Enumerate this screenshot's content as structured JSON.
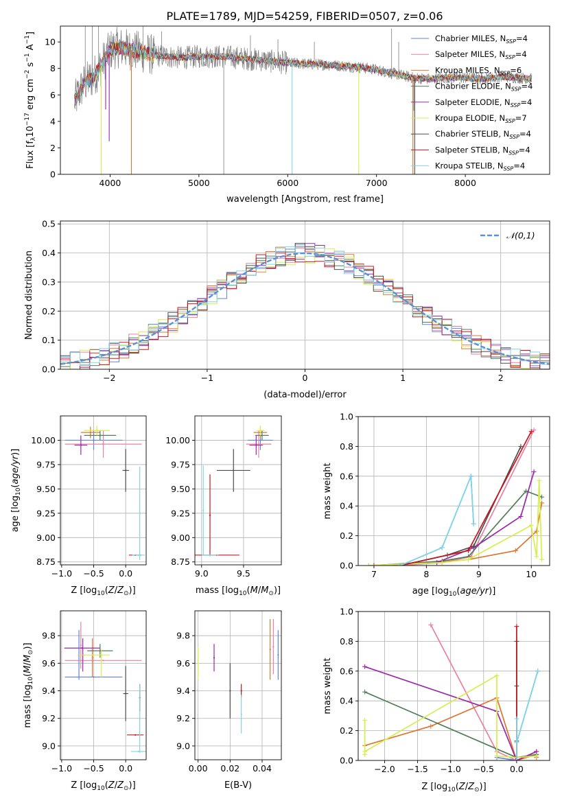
{
  "figure": {
    "title": "PLATE=1789, MJD=54259, FIBERID=0507, z=0.06",
    "colors": {
      "Chabrier MILES": "#5b84de",
      "Salpeter MILES": "#ea7fa3",
      "Kroupa MILES": "#e0742c",
      "Chabrier ELODIE": "#4e7e5a",
      "Salpeter ELODIE": "#9b26ab",
      "Kroupa ELODIE": "#d6ee4c",
      "Chabrier STELIB": "#4d4d4d",
      "Salpeter STELIB": "#c4161c",
      "Kroupa STELIB": "#7fd8e4",
      "data": "#7d7d7d"
    }
  },
  "chart_data": [
    {
      "id": "spectrum",
      "type": "line",
      "title": "PLATE=1789, MJD=54259, FIBERID=0507, z=0.06",
      "xlabel": "wavelength [Angstrom, rest frame]",
      "ylabel": "Flux [f_λ 10^-17 erg cm^-2 s^-1 A^-1]",
      "xlim": [
        3440,
        8950
      ],
      "ylim": [
        0,
        11.2
      ],
      "xticks": [
        4000,
        5000,
        6000,
        7000,
        8000
      ],
      "yticks": [
        0,
        2,
        4,
        6,
        8,
        10
      ],
      "legend_location": "top-right",
      "legend": [
        {
          "label": "Chabrier MILES, N",
          "sub": "SSP",
          "suffix": "=4"
        },
        {
          "label": "Salpeter MILES, N",
          "sub": "SSP",
          "suffix": "=4"
        },
        {
          "label": "Kroupa MILES, N",
          "sub": "SSP",
          "suffix": "=6"
        },
        {
          "label": "Chabrier ELODIE, N",
          "sub": "SSP",
          "suffix": "=4"
        },
        {
          "label": "Salpeter ELODIE, N",
          "sub": "SSP",
          "suffix": "=4"
        },
        {
          "label": "Kroupa ELODIE, N",
          "sub": "SSP",
          "suffix": "=7"
        },
        {
          "label": "Chabrier STELIB, N",
          "sub": "SSP",
          "suffix": "=4"
        },
        {
          "label": "Salpeter STELIB, N",
          "sub": "SSP",
          "suffix": "=4"
        },
        {
          "label": "Kroupa STELIB, N",
          "sub": "SSP",
          "suffix": "=4"
        }
      ],
      "continuum": {
        "x": [
          3600,
          3700,
          3800,
          3900,
          4000,
          4100,
          4300,
          4500,
          4800,
          5000,
          5300,
          5600,
          6000,
          6400,
          6800,
          7000,
          7200,
          7400,
          7600,
          7800,
          8000,
          8200,
          8400,
          8600,
          8750
        ],
        "y": [
          5.5,
          6.8,
          7.3,
          8.2,
          9.4,
          9.6,
          9.3,
          9.0,
          8.8,
          8.9,
          8.9,
          8.7,
          8.4,
          8.3,
          8.1,
          7.9,
          7.6,
          7.3,
          7.2,
          7.3,
          7.3,
          7.2,
          7.4,
          7.3,
          7.2
        ]
      },
      "model_dips": [
        {
          "series": "Kroupa ELODIE",
          "x": 3900,
          "to": 0
        },
        {
          "series": "Salpeter ELODIE",
          "x": 3950,
          "to": 4.9
        },
        {
          "series": "Salpeter ELODIE",
          "x": 3990,
          "to": 2.5
        },
        {
          "series": "Kroupa MILES",
          "x": 4240,
          "to": 0
        },
        {
          "series": "Kroupa STELIB",
          "x": 6050,
          "to": 0
        },
        {
          "series": "Kroupa ELODIE",
          "x": 6800,
          "to": 0
        },
        {
          "series": "Kroupa MILES",
          "x": 7410,
          "to": 0
        },
        {
          "series": "Chabrier STELIB",
          "x": 7430,
          "to": 0
        }
      ],
      "data_spikes": [
        {
          "x": 3720,
          "to": 11.2
        },
        {
          "x": 3800,
          "to": 11.2
        },
        {
          "x": 3870,
          "to": 11.2
        },
        {
          "x": 4370,
          "to": 11.2
        },
        {
          "x": 4580,
          "to": 10.8
        },
        {
          "x": 5280,
          "to": 0
        },
        {
          "x": 5580,
          "to": 10.5
        },
        {
          "x": 5890,
          "to": 10.2
        },
        {
          "x": 6300,
          "to": 10.0
        },
        {
          "x": 7170,
          "to": 11.0
        },
        {
          "x": 7250,
          "to": 10.0
        },
        {
          "x": 7420,
          "to": 4.8
        }
      ]
    },
    {
      "id": "residuals",
      "type": "histogram",
      "xlabel": "(data-model)/error",
      "ylabel": "Normed distribution",
      "xlim": [
        -2.5,
        2.5
      ],
      "ylim": [
        0,
        0.51
      ],
      "xticks": [
        -2,
        -1,
        0,
        1,
        2
      ],
      "yticks": [
        0,
        0.1,
        0.2,
        0.3,
        0.4,
        0.5
      ],
      "bin_width": 0.1,
      "reference": {
        "name": "𝒩(0,1)",
        "mean": 0,
        "sigma": 1,
        "color": "#5b8fd6"
      },
      "legend_location": "top-right"
    },
    {
      "id": "age-vs-Z",
      "type": "errorbar",
      "xlabel": "Z [log10(Z/Z⊙)]",
      "ylabel": "age [log10(age/yr)]",
      "xlim": [
        -1.02,
        0.32
      ],
      "ylim": [
        8.72,
        10.25
      ],
      "xticks": [
        -1.0,
        -0.5,
        0.0
      ],
      "yticks": [
        8.75,
        9.0,
        9.25,
        9.5,
        9.75,
        10.0
      ],
      "points": [
        {
          "series": "Chabrier MILES",
          "x": -0.5,
          "xerr": 0.45,
          "y": 10.0,
          "yerr": 0.1
        },
        {
          "series": "Salpeter MILES",
          "x": -0.35,
          "xerr": 0.6,
          "y": 9.96,
          "yerr": 0.14
        },
        {
          "series": "Kroupa MILES",
          "x": -0.55,
          "xerr": 0.15,
          "y": 10.08,
          "yerr": 0.06
        },
        {
          "series": "Chabrier ELODIE",
          "x": -0.4,
          "xerr": 0.25,
          "y": 10.05,
          "yerr": 0.05
        },
        {
          "series": "Salpeter ELODIE",
          "x": -0.7,
          "xerr": 0.1,
          "y": 9.95,
          "yerr": 0.1
        },
        {
          "series": "Kroupa ELODIE",
          "x": -0.45,
          "xerr": 0.2,
          "y": 10.1,
          "yerr": 0.05
        },
        {
          "series": "Chabrier STELIB",
          "x": 0.0,
          "xerr": 0.05,
          "y": 9.69,
          "yerr": 0.22
        },
        {
          "series": "Salpeter STELIB",
          "x": 0.15,
          "xerr": 0.1,
          "y": 8.82,
          "yerr": 0.0
        },
        {
          "series": "Kroupa STELIB",
          "x": 0.2,
          "xerr": 0.1,
          "y": 8.82,
          "yerr": 0.0
        },
        {
          "series": "Kroupa STELIB",
          "x": 0.22,
          "xerr": 0.0,
          "y": 9.25,
          "yerr": 0.48
        }
      ]
    },
    {
      "id": "age-vs-mass",
      "type": "errorbar",
      "xlabel": "mass [log10(M/M⊙)]",
      "ylabel": "",
      "xlim": [
        8.92,
        9.95
      ],
      "ylim": [
        8.72,
        10.25
      ],
      "xticks": [
        9.0,
        9.5
      ],
      "yticks": [
        8.75,
        9.0,
        9.25,
        9.5,
        9.75,
        10.0
      ],
      "points": [
        {
          "series": "Chabrier MILES",
          "x": 9.7,
          "xerr": 0.15,
          "y": 10.0,
          "yerr": 0.1
        },
        {
          "series": "Salpeter MILES",
          "x": 9.68,
          "xerr": 0.15,
          "y": 9.96,
          "yerr": 0.14
        },
        {
          "series": "Kroupa MILES",
          "x": 9.7,
          "xerr": 0.08,
          "y": 10.08,
          "yerr": 0.06
        },
        {
          "series": "Chabrier ELODIE",
          "x": 9.72,
          "xerr": 0.08,
          "y": 10.05,
          "yerr": 0.05
        },
        {
          "series": "Salpeter ELODIE",
          "x": 9.65,
          "xerr": 0.08,
          "y": 9.95,
          "yerr": 0.1
        },
        {
          "series": "Kroupa ELODIE",
          "x": 9.7,
          "xerr": 0.05,
          "y": 10.1,
          "yerr": 0.05
        },
        {
          "series": "Chabrier STELIB",
          "x": 9.38,
          "xerr": 0.2,
          "y": 9.69,
          "yerr": 0.22
        },
        {
          "series": "Salpeter STELIB",
          "x": 9.18,
          "xerr": 0.27,
          "y": 8.82,
          "yerr": 0.0
        },
        {
          "series": "Salpeter STELIB",
          "x": 9.1,
          "xerr": 0.0,
          "y": 9.23,
          "yerr": 0.42
        },
        {
          "series": "Kroupa STELIB",
          "x": 9.02,
          "xerr": 0.0,
          "y": 9.28,
          "yerr": 0.46
        },
        {
          "series": "Kroupa STELIB",
          "x": 9.1,
          "xerr": 0.1,
          "y": 8.82,
          "yerr": 0.0
        }
      ]
    },
    {
      "id": "weight-vs-age",
      "type": "line",
      "xlabel": "age [log10(age/yr)]",
      "ylabel": "mass weight",
      "xlim": [
        6.7,
        10.35
      ],
      "ylim": [
        0,
        1.0
      ],
      "xticks": [
        7,
        8,
        9,
        10
      ],
      "yticks": [
        0.0,
        0.2,
        0.4,
        0.6,
        0.8,
        1.0
      ],
      "series": [
        {
          "name": "Chabrier MILES",
          "x": [
            7.5,
            8.3,
            8.85,
            8.9
          ],
          "y": [
            0.0,
            0.12,
            0.6,
            0.28
          ]
        },
        {
          "name": "Salpeter MILES",
          "x": [
            7.5,
            8.3,
            8.85,
            10.05
          ],
          "y": [
            0.0,
            0.02,
            0.06,
            0.91
          ]
        },
        {
          "name": "Kroupa MILES",
          "x": [
            6.9,
            8.2,
            8.8,
            9.7,
            10.1,
            10.2
          ],
          "y": [
            0.0,
            0.02,
            0.04,
            0.1,
            0.23,
            0.42
          ]
        },
        {
          "name": "Chabrier ELODIE",
          "x": [
            7.0,
            8.3,
            8.8,
            9.9,
            10.2
          ],
          "y": [
            0.0,
            0.03,
            0.06,
            0.5,
            0.46
          ]
        },
        {
          "name": "Salpeter ELODIE",
          "x": [
            7.0,
            8.2,
            8.9,
            9.8,
            10.05
          ],
          "y": [
            0.0,
            0.02,
            0.12,
            0.33,
            0.63
          ]
        },
        {
          "name": "Kroupa ELODIE",
          "x": [
            6.9,
            8.3,
            8.8,
            10.0,
            10.1,
            10.15,
            10.2
          ],
          "y": [
            0.0,
            0.02,
            0.04,
            0.27,
            0.06,
            0.57,
            0.04
          ]
        },
        {
          "name": "Chabrier STELIB",
          "x": [
            7.5,
            8.4,
            8.9,
            9.8
          ],
          "y": [
            0.0,
            0.07,
            0.13,
            0.8
          ]
        },
        {
          "name": "Salpeter STELIB",
          "x": [
            7.5,
            8.8,
            10.0
          ],
          "y": [
            0.0,
            0.1,
            0.9
          ]
        },
        {
          "name": "Kroupa STELIB",
          "x": [
            7.5,
            8.3,
            8.85,
            8.9
          ],
          "y": [
            0.0,
            0.12,
            0.6,
            0.28
          ]
        }
      ]
    },
    {
      "id": "mass-vs-Z",
      "type": "errorbar",
      "xlabel": "Z [log10(Z/Z⊙)]",
      "ylabel": "mass [log10(M/M⊙)]",
      "xlim": [
        -1.02,
        0.32
      ],
      "ylim": [
        8.9,
        9.98
      ],
      "xticks": [
        -1.0,
        -0.5,
        0.0
      ],
      "yticks": [
        9.0,
        9.2,
        9.4,
        9.6,
        9.8
      ],
      "points": [
        {
          "series": "Chabrier MILES",
          "x": -0.5,
          "xerr": 0.45,
          "y": 9.5,
          "yerr": 0.0
        },
        {
          "series": "Chabrier MILES",
          "x": -0.73,
          "xerr": 0.0,
          "y": 9.66,
          "yerr": 0.18
        },
        {
          "series": "Salpeter MILES",
          "x": -0.35,
          "xerr": 0.6,
          "y": 9.62,
          "yerr": 0.0
        },
        {
          "series": "Salpeter MILES",
          "x": -0.7,
          "xerr": 0.0,
          "y": 9.73,
          "yerr": 0.17
        },
        {
          "series": "Kroupa MILES",
          "x": -0.52,
          "xerr": 0.0,
          "y": 9.64,
          "yerr": 0.14
        },
        {
          "series": "Chabrier ELODIE",
          "x": -0.4,
          "xerr": 0.2,
          "y": 9.69,
          "yerr": 0.05
        },
        {
          "series": "Salpeter ELODIE",
          "x": -0.68,
          "xerr": 0.28,
          "y": 9.71,
          "yerr": 0.0
        },
        {
          "series": "Salpeter ELODIE",
          "x": -0.67,
          "xerr": 0.0,
          "y": 9.66,
          "yerr": 0.12
        },
        {
          "series": "Kroupa ELODIE",
          "x": -0.5,
          "xerr": 0.25,
          "y": 9.66,
          "yerr": 0.0
        },
        {
          "series": "Kroupa ELODIE",
          "x": -0.38,
          "xerr": 0.0,
          "y": 9.6,
          "yerr": 0.1
        },
        {
          "series": "Chabrier STELIB",
          "x": 0.0,
          "xerr": 0.04,
          "y": 9.38,
          "yerr": 0.2
        },
        {
          "series": "Salpeter STELIB",
          "x": 0.15,
          "xerr": 0.13,
          "y": 9.08,
          "yerr": 0.0
        },
        {
          "series": "Salpeter STELIB",
          "x": 0.22,
          "xerr": 0.0,
          "y": 9.35,
          "yerr": 0.1
        },
        {
          "series": "Kroupa STELIB",
          "x": 0.2,
          "xerr": 0.12,
          "y": 8.96,
          "yerr": 0.0
        },
        {
          "series": "Kroupa STELIB",
          "x": 0.22,
          "xerr": 0.0,
          "y": 9.2,
          "yerr": 0.25
        }
      ]
    },
    {
      "id": "mass-vs-EBV",
      "type": "errorbar",
      "xlabel": "E(B-V)",
      "ylabel": "",
      "xlim": [
        -0.002,
        0.052
      ],
      "ylim": [
        8.9,
        9.98
      ],
      "xticks": [
        0.0,
        0.02,
        0.04
      ],
      "yticks": [
        9.0,
        9.2,
        9.4,
        9.6,
        9.8
      ],
      "points": [
        {
          "series": "Kroupa ELODIE",
          "x": 0.0,
          "xerr": 0.0,
          "y": 9.6,
          "yerr": 0.12
        },
        {
          "series": "Salpeter ELODIE",
          "x": 0.01,
          "xerr": 0.0,
          "y": 9.64,
          "yerr": 0.1
        },
        {
          "series": "Chabrier STELIB",
          "x": 0.02,
          "xerr": 0.0,
          "y": 9.4,
          "yerr": 0.2
        },
        {
          "series": "Salpeter STELIB",
          "x": 0.027,
          "xerr": 0.0,
          "y": 9.4,
          "yerr": 0.05
        },
        {
          "series": "Kroupa STELIB",
          "x": 0.027,
          "xerr": 0.0,
          "y": 9.23,
          "yerr": 0.14
        },
        {
          "series": "Kroupa MILES",
          "x": 0.045,
          "xerr": 0.0,
          "y": 9.7,
          "yerr": 0.22
        },
        {
          "series": "Salpeter MILES",
          "x": 0.047,
          "xerr": 0.0,
          "y": 9.72,
          "yerr": 0.2
        },
        {
          "series": "Chabrier MILES",
          "x": 0.05,
          "xerr": 0.0,
          "y": 9.66,
          "yerr": 0.18
        }
      ]
    },
    {
      "id": "weight-vs-Z",
      "type": "line",
      "xlabel": "Z [log10(Z/Z⊙)]",
      "ylabel": "mass weight",
      "xlim": [
        -2.4,
        0.5
      ],
      "ylim": [
        0,
        1.0
      ],
      "xticks": [
        -2.0,
        -1.5,
        -1.0,
        -0.5,
        0.0
      ],
      "yticks": [
        0.0,
        0.2,
        0.4,
        0.6,
        0.8,
        1.0
      ],
      "series": [
        {
          "name": "Chabrier MILES",
          "x": [
            -0.3,
            0.0,
            0.0,
            0.32
          ],
          "y": [
            0.02,
            0.0,
            0.12,
            0.6
          ]
        },
        {
          "name": "Salpeter MILES",
          "x": [
            -1.3,
            -0.3,
            0.0,
            0.3
          ],
          "y": [
            0.91,
            0.06,
            0.0,
            0.06
          ]
        },
        {
          "name": "Kroupa MILES",
          "x": [
            -2.3,
            -1.3,
            -0.3,
            0.0,
            0.3,
            0.3
          ],
          "y": [
            0.1,
            0.23,
            0.42,
            0.0,
            0.04,
            0.02
          ]
        },
        {
          "name": "Chabrier ELODIE",
          "x": [
            -2.3,
            0.0,
            0.3
          ],
          "y": [
            0.46,
            0.02,
            0.04
          ]
        },
        {
          "name": "Salpeter ELODIE",
          "x": [
            -2.3,
            -0.3,
            0.0,
            0.3
          ],
          "y": [
            0.63,
            0.33,
            0.0,
            0.06
          ]
        },
        {
          "name": "Kroupa ELODIE",
          "x": [
            -2.3,
            -2.3,
            -2.3,
            -0.3,
            -0.3,
            0.0,
            0.3
          ],
          "y": [
            0.04,
            0.27,
            0.06,
            0.57,
            0.03,
            0.02,
            0.03
          ]
        },
        {
          "name": "Chabrier STELIB",
          "x": [
            0.0,
            0.0,
            0.0,
            0.0
          ],
          "y": [
            0.8,
            0.5,
            0.13,
            0.0
          ]
        },
        {
          "name": "Salpeter STELIB",
          "x": [
            0.0,
            0.0
          ],
          "y": [
            0.9,
            0.0
          ]
        },
        {
          "name": "Kroupa STELIB",
          "x": [
            0.0,
            0.0,
            0.0,
            0.32
          ],
          "y": [
            0.28,
            0.0,
            0.12,
            0.6
          ]
        }
      ]
    }
  ]
}
